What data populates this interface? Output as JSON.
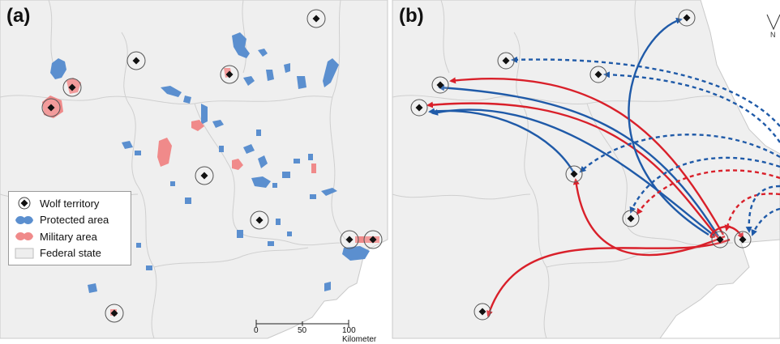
{
  "panels": {
    "a": {
      "label": "(a)"
    },
    "b": {
      "label": "(b)"
    }
  },
  "legend": {
    "items": [
      {
        "label": "Wolf territory",
        "symbol": "diamond-circle-icon"
      },
      {
        "label": "Protected area",
        "symbol": "blue-patch-icon",
        "color": "#5b8fcf"
      },
      {
        "label": "Military area",
        "symbol": "red-patch-icon",
        "color": "#f08a8a"
      },
      {
        "label": "Federal state",
        "symbol": "gray-patch-icon",
        "color": "#eeeeee"
      }
    ]
  },
  "scalebar": {
    "ticks": [
      "0",
      "50",
      "100 Kilometer"
    ]
  },
  "north_arrow": {
    "label": "N"
  },
  "colors": {
    "land": "#efefef",
    "border": "#c8c8c8",
    "protected": "#5b8fcf",
    "military": "#f08a8a",
    "arrow_blue": "#1f5aa8",
    "arrow_red": "#d9202a"
  },
  "dispersal_legend_note": ""
}
